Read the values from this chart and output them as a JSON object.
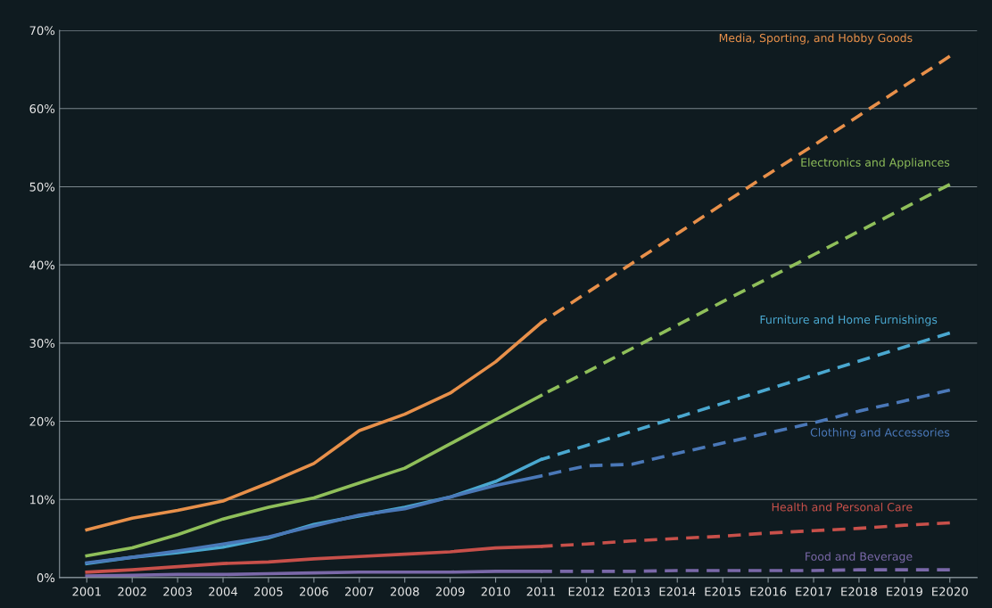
{
  "chart_data": {
    "type": "line",
    "categories": [
      "2001",
      "2002",
      "2003",
      "2004",
      "2005",
      "2006",
      "2007",
      "2008",
      "2009",
      "2010",
      "2011",
      "E2012",
      "E2013",
      "E2014",
      "E2015",
      "E2016",
      "E2017",
      "E2018",
      "E2019",
      "E2020"
    ],
    "ylim": [
      0,
      70
    ],
    "yticks": [
      {
        "value": 0,
        "label": "0%"
      },
      {
        "value": 10,
        "label": "10%"
      },
      {
        "value": 20,
        "label": "20%"
      },
      {
        "value": 30,
        "label": "30%"
      },
      {
        "value": 40,
        "label": "40%"
      },
      {
        "value": 50,
        "label": "50%"
      },
      {
        "value": 60,
        "label": "60%"
      },
      {
        "value": 70,
        "label": "70%"
      }
    ],
    "grid": "y",
    "legend": false,
    "marker": "none",
    "series": [
      {
        "color": "#e8904a",
        "line_style": "solid",
        "values": [
          6.1,
          7.6,
          8.6,
          9.8,
          12.1,
          14.6,
          18.8,
          20.9,
          23.6,
          27.6,
          32.6,
          null,
          null,
          null,
          null,
          null,
          null,
          null,
          null,
          null
        ]
      },
      {
        "name": "Media, Sporting, and Hobby Goods",
        "color": "#e8904a",
        "line_style": "dashed",
        "values": [
          null,
          null,
          null,
          null,
          null,
          null,
          null,
          null,
          null,
          null,
          32.6,
          36.4,
          40.2,
          44.0,
          47.8,
          51.6,
          55.3,
          59.1,
          62.9,
          66.7
        ]
      },
      {
        "color": "#8fbf5a",
        "line_style": "solid",
        "values": [
          2.8,
          3.8,
          5.5,
          7.5,
          9.0,
          10.2,
          12.1,
          14.0,
          17.1,
          20.2,
          23.3,
          null,
          null,
          null,
          null,
          null,
          null,
          null,
          null,
          null
        ]
      },
      {
        "name": "Electronics and Appliances",
        "color": "#8fbf5a",
        "line_style": "dashed",
        "values": [
          null,
          null,
          null,
          null,
          null,
          null,
          null,
          null,
          null,
          null,
          23.3,
          26.3,
          29.3,
          32.3,
          35.3,
          38.3,
          41.3,
          44.3,
          47.3,
          50.3
        ]
      },
      {
        "color": "#4aa8d0",
        "line_style": "solid",
        "values": [
          1.8,
          2.6,
          3.2,
          3.9,
          5.1,
          6.8,
          7.9,
          9.0,
          10.3,
          12.3,
          15.1,
          null,
          null,
          null,
          null,
          null,
          null,
          null,
          null,
          null
        ]
      },
      {
        "name": "Furniture and Home Furnishings",
        "color": "#4aa8d0",
        "line_style": "dashed",
        "values": [
          null,
          null,
          null,
          null,
          null,
          null,
          null,
          null,
          null,
          null,
          15.1,
          16.9,
          18.7,
          20.5,
          22.3,
          24.1,
          25.9,
          27.7,
          29.5,
          31.3
        ]
      },
      {
        "color": "#4a78b8",
        "line_style": "solid",
        "values": [
          1.9,
          2.6,
          3.4,
          4.3,
          5.2,
          6.6,
          8.0,
          8.8,
          10.3,
          11.8,
          13.0,
          null,
          null,
          null,
          null,
          null,
          null,
          null,
          null,
          null
        ]
      },
      {
        "name": "Clothing and Accessories",
        "color": "#4a78b8",
        "line_style": "dashed",
        "values": [
          null,
          null,
          null,
          null,
          null,
          null,
          null,
          null,
          null,
          null,
          13.0,
          14.3,
          14.5,
          15.9,
          17.2,
          18.5,
          19.8,
          21.3,
          22.6,
          24.0
        ]
      },
      {
        "color": "#c8504a",
        "line_style": "solid",
        "values": [
          0.7,
          1.0,
          1.4,
          1.8,
          2.0,
          2.4,
          2.7,
          3.0,
          3.3,
          3.8,
          4.0,
          null,
          null,
          null,
          null,
          null,
          null,
          null,
          null,
          null
        ]
      },
      {
        "name": "Health and Personal Care",
        "color": "#c8504a",
        "line_style": "dashed",
        "values": [
          null,
          null,
          null,
          null,
          null,
          null,
          null,
          null,
          null,
          null,
          4.0,
          4.3,
          4.7,
          5.0,
          5.3,
          5.7,
          6.0,
          6.3,
          6.7,
          7.0
        ]
      },
      {
        "color": "#7a68a8",
        "line_style": "solid",
        "values": [
          0.2,
          0.3,
          0.4,
          0.4,
          0.5,
          0.6,
          0.7,
          0.7,
          0.7,
          0.8,
          0.8,
          null,
          null,
          null,
          null,
          null,
          null,
          null,
          null,
          null
        ]
      },
      {
        "name": "Food and Beverage",
        "color": "#7a68a8",
        "line_style": "dashed",
        "values": [
          null,
          null,
          null,
          null,
          null,
          null,
          null,
          null,
          null,
          null,
          0.8,
          0.8,
          0.8,
          0.9,
          0.9,
          0.9,
          0.9,
          1.0,
          1.0,
          1.0
        ]
      }
    ]
  }
}
